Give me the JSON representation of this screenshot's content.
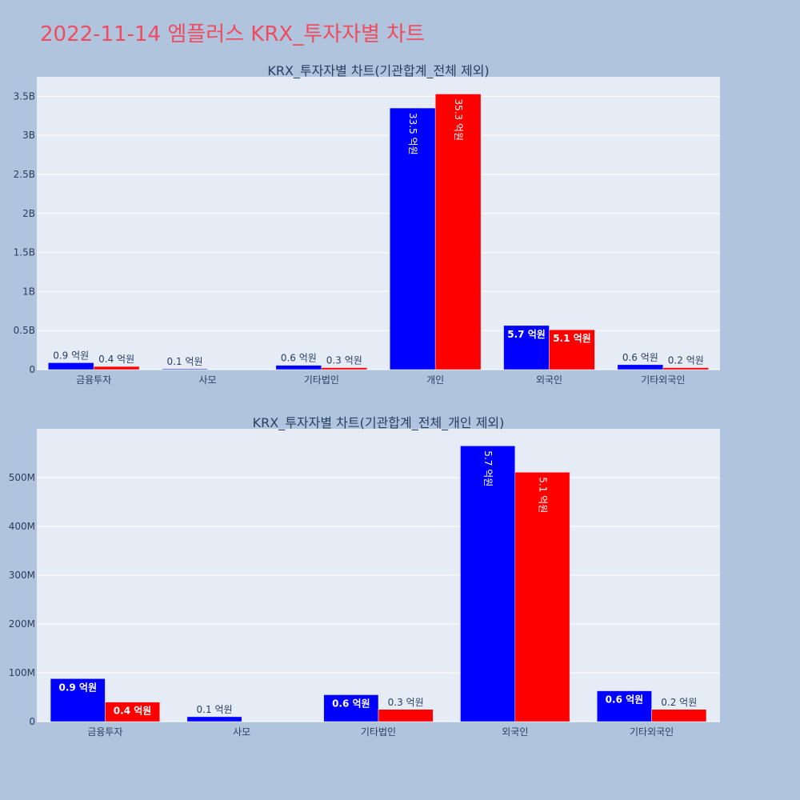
{
  "page_title": "2022-11-14 엠플러스 KRX_투자자별 차트",
  "colors": {
    "background": "#b0c4de",
    "plot_bg": "#e5ecf6",
    "grid": "#ffffff",
    "text": "#2a3f5f",
    "title": "#ef4d5f",
    "series_1": "#0000ff",
    "series_2": "#ff0000"
  },
  "chart_data": [
    {
      "type": "bar",
      "title": "KRX_투자자별 차트(기관합계_전체 제외)",
      "categories": [
        "금융투자",
        "사모",
        "기타법인",
        "개인",
        "외국인",
        "기타외국인"
      ],
      "ylim": [
        0,
        3.75
      ],
      "y_ticks": [
        0,
        0.5,
        1,
        1.5,
        2,
        2.5,
        3,
        3.5
      ],
      "y_tick_labels": [
        "0",
        "0.5B",
        "1B",
        "1.5B",
        "2B",
        "2.5B",
        "3B",
        "3.5B"
      ],
      "grid": true,
      "series": [
        {
          "color": "#0000ff",
          "values": [
            0.088,
            0.01,
            0.055,
            3.35,
            0.565,
            0.063
          ],
          "labels": [
            "0.9 억원",
            "0.1 억원",
            "0.6 억원",
            "33.5 억원",
            "5.7 억원",
            "0.6 억원"
          ]
        },
        {
          "color": "#ff0000",
          "values": [
            0.04,
            0,
            0.025,
            3.53,
            0.51,
            0.025
          ],
          "labels": [
            "0.4 억원",
            "",
            "0.3 억원",
            "35.3 억원",
            "5.1 억원",
            "0.2 억원"
          ]
        }
      ]
    },
    {
      "type": "bar",
      "title": "KRX_투자자별 차트(기관합계_전체_개인 제외)",
      "categories": [
        "금융투자",
        "사모",
        "기타법인",
        "외국인",
        "기타외국인"
      ],
      "ylim": [
        0,
        600
      ],
      "y_ticks": [
        0,
        100,
        200,
        300,
        400,
        500
      ],
      "y_tick_labels": [
        "0",
        "100M",
        "200M",
        "300M",
        "400M",
        "500M"
      ],
      "grid": true,
      "series": [
        {
          "color": "#0000ff",
          "values": [
            88,
            10,
            55,
            565,
            63
          ],
          "labels": [
            "0.9 억원",
            "0.1 억원",
            "0.6 억원",
            "5.7 억원",
            "0.6 억원"
          ]
        },
        {
          "color": "#ff0000",
          "values": [
            40,
            0,
            25,
            511,
            25
          ],
          "labels": [
            "0.4 억원",
            "",
            "0.3 억원",
            "5.1 억원",
            "0.2 억원"
          ]
        }
      ]
    }
  ]
}
